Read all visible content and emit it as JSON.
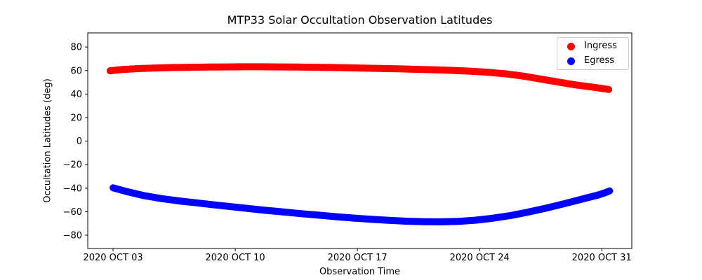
{
  "colors": {
    "background": "#ffffff",
    "axis": "#000000",
    "text": "#000000",
    "legend_border": "#cccccc",
    "ingress": "#ff0000",
    "egress": "#0000ff"
  },
  "chart_data": {
    "type": "scatter",
    "title": "MTP33 Solar Occultation Observation Latitudes",
    "xlabel": "Observation Time",
    "ylabel": "Occultation Latitudes (deg)",
    "grid": false,
    "x_value_unit": "day of October 2020 (from visible date tick labels)",
    "xlim": [
      1.55,
      32.72
    ],
    "ylim": [
      -91.3,
      92.0
    ],
    "x_ticks": [
      {
        "value": 3,
        "label": "2020 OCT 03"
      },
      {
        "value": 10,
        "label": "2020 OCT 10"
      },
      {
        "value": 17,
        "label": "2020 OCT 17"
      },
      {
        "value": 24,
        "label": "2020 OCT 24"
      },
      {
        "value": 31,
        "label": "2020 OCT 31"
      }
    ],
    "y_ticks": [
      {
        "value": 80,
        "label": "80"
      },
      {
        "value": 60,
        "label": "60"
      },
      {
        "value": 40,
        "label": "40"
      },
      {
        "value": 20,
        "label": "20"
      },
      {
        "value": 0,
        "label": "0"
      },
      {
        "value": -20,
        "label": "−20"
      },
      {
        "value": -40,
        "label": "−40"
      },
      {
        "value": -60,
        "label": "−60"
      },
      {
        "value": -80,
        "label": "−80"
      }
    ],
    "legend": {
      "position": "upper right",
      "entries": [
        {
          "label": "Ingress",
          "color": "#ff0000"
        },
        {
          "label": "Egress",
          "color": "#0000ff"
        }
      ]
    },
    "series": [
      {
        "name": "Ingress",
        "color": "#ff0000",
        "marker": "circle",
        "points": [
          [
            2.83,
            59.8
          ],
          [
            3.5,
            60.8
          ],
          [
            4.5,
            61.7
          ],
          [
            5.5,
            62.2
          ],
          [
            6.5,
            62.6
          ],
          [
            7.5,
            62.8
          ],
          [
            8.5,
            63.0
          ],
          [
            9.5,
            63.1
          ],
          [
            10.5,
            63.2
          ],
          [
            11.5,
            63.2
          ],
          [
            12.5,
            63.1
          ],
          [
            13.5,
            63.0
          ],
          [
            14.5,
            62.8
          ],
          [
            15.5,
            62.6
          ],
          [
            16.5,
            62.3
          ],
          [
            17.5,
            62.0
          ],
          [
            18.5,
            61.7
          ],
          [
            19.5,
            61.4
          ],
          [
            20.5,
            61.0
          ],
          [
            21.5,
            60.6
          ],
          [
            22.5,
            60.1
          ],
          [
            23.5,
            59.4
          ],
          [
            24.5,
            58.5
          ],
          [
            25.5,
            57.2
          ],
          [
            26.5,
            55.3
          ],
          [
            27.5,
            52.8
          ],
          [
            28.5,
            50.2
          ],
          [
            29.5,
            47.8
          ],
          [
            30.5,
            45.8
          ],
          [
            31.0,
            44.8
          ],
          [
            31.4,
            43.9
          ]
        ]
      },
      {
        "name": "Egress",
        "color": "#0000ff",
        "marker": "circle",
        "points": [
          [
            3.0,
            -39.7
          ],
          [
            3.8,
            -43.0
          ],
          [
            4.8,
            -46.4
          ],
          [
            5.8,
            -48.9
          ],
          [
            6.8,
            -50.9
          ],
          [
            7.8,
            -52.5
          ],
          [
            8.8,
            -54.2
          ],
          [
            9.8,
            -55.8
          ],
          [
            10.8,
            -57.4
          ],
          [
            11.8,
            -58.9
          ],
          [
            12.8,
            -60.3
          ],
          [
            13.8,
            -61.7
          ],
          [
            14.8,
            -63.0
          ],
          [
            15.8,
            -64.3
          ],
          [
            16.8,
            -65.5
          ],
          [
            17.8,
            -66.5
          ],
          [
            18.8,
            -67.4
          ],
          [
            19.8,
            -68.1
          ],
          [
            20.8,
            -68.5
          ],
          [
            21.8,
            -68.6
          ],
          [
            22.8,
            -68.2
          ],
          [
            23.8,
            -67.2
          ],
          [
            24.8,
            -65.5
          ],
          [
            25.8,
            -63.2
          ],
          [
            26.8,
            -60.3
          ],
          [
            27.8,
            -57.0
          ],
          [
            28.8,
            -53.4
          ],
          [
            29.8,
            -49.6
          ],
          [
            30.8,
            -45.8
          ],
          [
            31.2,
            -43.8
          ],
          [
            31.45,
            -42.3
          ]
        ]
      }
    ]
  }
}
